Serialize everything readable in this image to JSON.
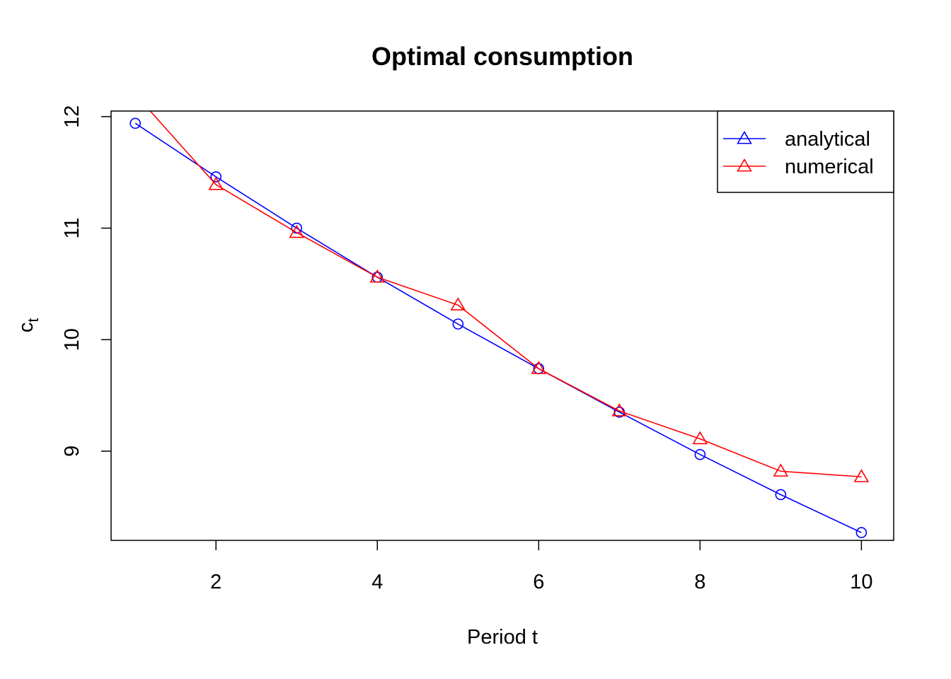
{
  "chart_data": {
    "type": "line",
    "title": "Optimal consumption",
    "xlabel": "Period t",
    "ylabel_base": "c",
    "ylabel_subscript": "t",
    "xlim": [
      0.7,
      10.4
    ],
    "ylim": [
      8.2,
      12.05
    ],
    "x_ticks": [
      2,
      4,
      6,
      8,
      10
    ],
    "y_ticks": [
      9,
      10,
      11,
      12
    ],
    "x": [
      1,
      2,
      3,
      4,
      5,
      6,
      7,
      8,
      9,
      10
    ],
    "series": [
      {
        "name": "analytical",
        "color": "#0000ff",
        "marker": "circle",
        "legend_marker": "triangle",
        "values": [
          11.94,
          11.46,
          11.0,
          10.56,
          10.14,
          9.74,
          9.35,
          8.97,
          8.61,
          8.27
        ]
      },
      {
        "name": "numerical",
        "color": "#ff0000",
        "marker": "triangle",
        "legend_marker": "triangle",
        "values": [
          12.2,
          11.39,
          10.96,
          10.56,
          10.31,
          9.74,
          9.36,
          9.11,
          8.82,
          8.77
        ]
      }
    ],
    "grid": false,
    "legend_position": "top-right"
  }
}
